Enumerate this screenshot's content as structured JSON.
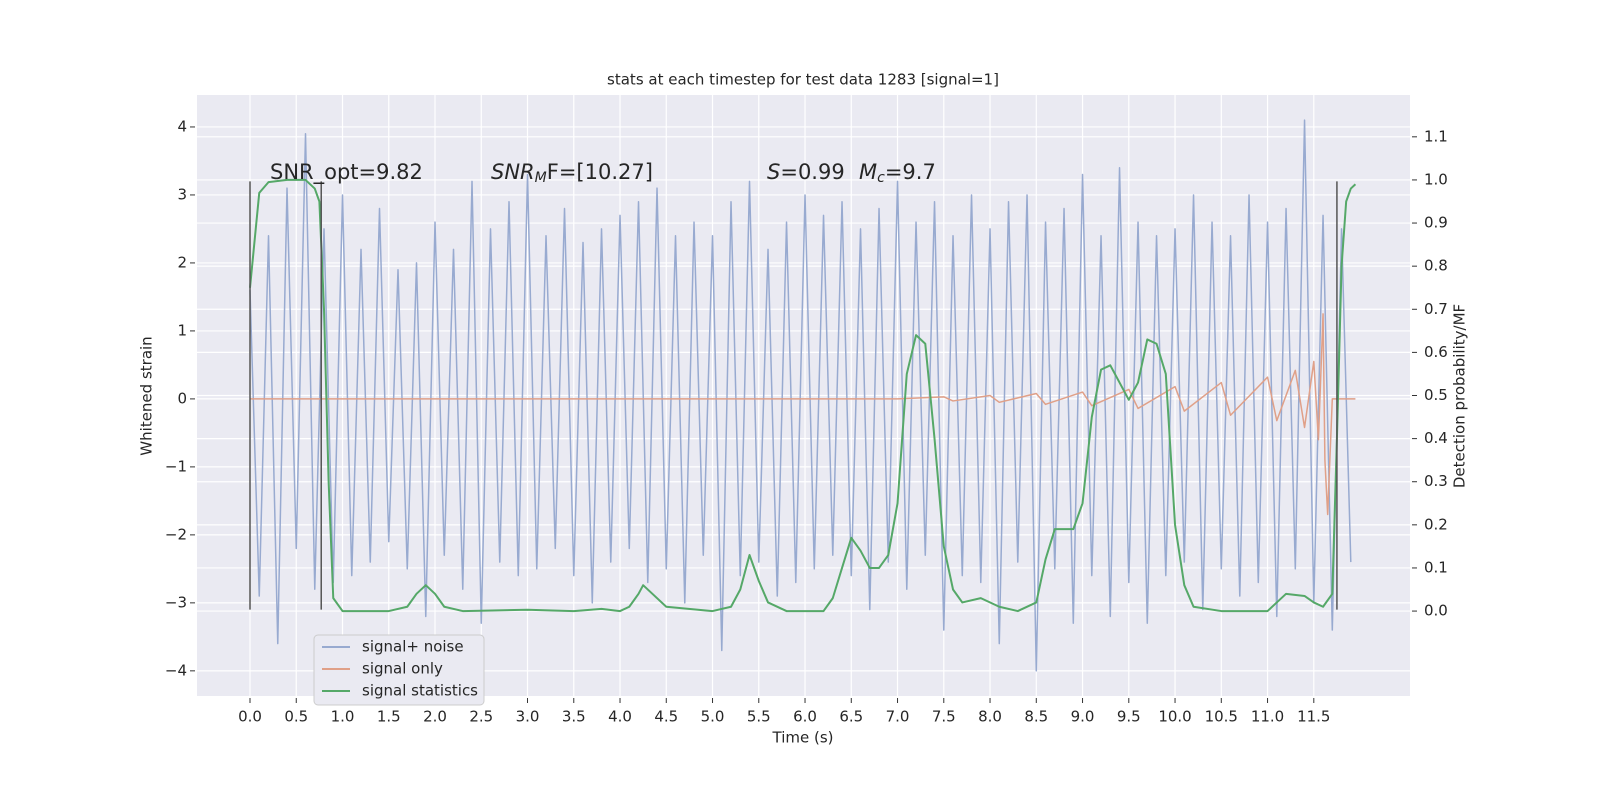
{
  "chart_data": {
    "type": "line",
    "title": "stats at each timestep for test data 1283 [signal=1]",
    "xlabel": "Time (s)",
    "ylabel": "Whitened strain",
    "y2label": "Detection probability/MF",
    "xlim": [
      -0.573,
      12.54
    ],
    "ylim": [
      -4.37,
      4.47
    ],
    "y2lim": [
      -0.197,
      1.197
    ],
    "xticks": [
      {
        "value": 0,
        "label": "0.0"
      },
      0.5,
      {
        "value": 1,
        "label": "1.0"
      },
      1.5,
      {
        "value": 2,
        "label": "2.0"
      },
      2.5,
      {
        "value": 3,
        "label": "3.0"
      },
      3.5,
      {
        "value": 4,
        "label": "4.0"
      },
      4.5,
      {
        "value": 5,
        "label": "5.0"
      },
      5.5,
      {
        "value": 6,
        "label": "6.0"
      },
      6.5,
      {
        "value": 7,
        "label": "7.0"
      },
      7.5,
      {
        "value": 8,
        "label": "8.0"
      },
      8.5,
      {
        "value": 9,
        "label": "9.0"
      },
      9.5,
      {
        "value": 10,
        "label": "10.0"
      },
      10.5,
      {
        "value": 11,
        "label": "11.0"
      },
      11.5
    ],
    "yticks": [
      {
        "value": -4,
        "label": "−4"
      },
      {
        "value": -3,
        "label": "−3"
      },
      {
        "value": -2,
        "label": "−2"
      },
      {
        "value": -1,
        "label": "−1"
      },
      0,
      1,
      2,
      3,
      4
    ],
    "y2ticks": [
      {
        "value": 0,
        "label": "0.0"
      },
      0.1,
      0.2,
      0.3,
      0.4,
      0.5,
      0.6,
      0.7,
      0.8,
      0.9,
      {
        "value": 1,
        "label": "1.0"
      },
      1.1
    ],
    "grid": true,
    "legend": "lower left",
    "annotations": [
      [
        "SNR_opt=9.82"
      ],
      [
        "SNR",
        "M",
        "F=[10.27]"
      ],
      [
        "S",
        "=0.99"
      ],
      [
        "M",
        "c",
        "=9.7"
      ]
    ],
    "vlines": {
      "x": [
        0,
        0.77,
        11.75
      ],
      "ymin": -3.1,
      "ymax": 3.2,
      "color": "#555555"
    },
    "series": [
      {
        "name": "signal+ noise",
        "color": "#98aad0",
        "x": [
          0,
          0.1,
          0.2,
          0.3,
          0.4,
          0.5,
          0.6,
          0.7,
          0.8,
          0.9,
          1,
          1.1,
          1.2,
          1.3,
          1.4,
          1.5,
          1.6,
          1.7,
          1.8,
          1.9,
          2,
          2.1,
          2.2,
          2.3,
          2.4,
          2.5,
          2.6,
          2.7,
          2.8,
          2.9,
          3,
          3.1,
          3.2,
          3.3,
          3.4,
          3.5,
          3.6,
          3.7,
          3.8,
          3.9,
          4,
          4.1,
          4.2,
          4.3,
          4.4,
          4.5,
          4.6,
          4.7,
          4.8,
          4.9,
          5,
          5.1,
          5.2,
          5.3,
          5.4,
          5.5,
          5.6,
          5.7,
          5.8,
          5.9,
          6,
          6.1,
          6.2,
          6.3,
          6.4,
          6.5,
          6.6,
          6.7,
          6.8,
          6.9,
          7,
          7.1,
          7.2,
          7.3,
          7.4,
          7.5,
          7.6,
          7.7,
          7.8,
          7.9,
          8,
          8.1,
          8.2,
          8.3,
          8.4,
          8.5,
          8.6,
          8.7,
          8.8,
          8.9,
          9,
          9.1,
          9.2,
          9.3,
          9.4,
          9.5,
          9.6,
          9.7,
          9.8,
          9.9,
          10,
          10.1,
          10.2,
          10.3,
          10.4,
          10.5,
          10.6,
          10.7,
          10.8,
          10.9,
          11,
          11.1,
          11.2,
          11.3,
          11.4,
          11.5,
          11.6,
          11.7,
          11.8,
          11.9
        ],
        "values": [
          1.6,
          -2.9,
          2.4,
          -3.6,
          3.1,
          -2.2,
          3.9,
          -2.8,
          2.5,
          -2.7,
          3.0,
          -2.6,
          2.2,
          -2.4,
          2.8,
          -2.1,
          1.9,
          -2.5,
          2.0,
          -3.2,
          2.6,
          -2.3,
          2.2,
          -2.8,
          3.2,
          -3.3,
          2.5,
          -2.4,
          2.9,
          -2.6,
          3.3,
          -2.5,
          2.4,
          -2.2,
          2.8,
          -2.6,
          2.3,
          -3.0,
          2.5,
          -2.4,
          2.7,
          -2.2,
          2.9,
          -2.7,
          3.1,
          -2.5,
          2.4,
          -3.0,
          2.6,
          -2.3,
          2.4,
          -3.7,
          2.9,
          -2.6,
          3.2,
          -2.4,
          2.2,
          -2.9,
          2.6,
          -2.7,
          3.0,
          -2.5,
          2.7,
          -2.3,
          2.9,
          -2.6,
          2.5,
          -3.1,
          2.8,
          -2.4,
          3.2,
          -2.8,
          2.6,
          -2.3,
          2.9,
          -3.4,
          2.4,
          -2.6,
          3.0,
          -2.7,
          2.5,
          -3.6,
          2.9,
          -2.4,
          3.0,
          -4.0,
          2.6,
          -2.5,
          2.8,
          -3.3,
          3.3,
          -2.6,
          2.4,
          -3.2,
          3.4,
          -2.7,
          2.6,
          -3.3,
          2.4,
          -2.6,
          2.5,
          -2.4,
          3.0,
          -3.1,
          2.6,
          -2.5,
          2.4,
          -2.9,
          3.0,
          -2.7,
          2.6,
          -3.2,
          2.8,
          -2.5,
          4.1,
          -3.0,
          2.7,
          -3.4,
          2.5,
          -2.4
        ]
      },
      {
        "name": "signal only",
        "color": "#e0a088",
        "x": [
          0,
          7,
          7.5,
          7.6,
          8,
          8.1,
          8.5,
          8.6,
          9,
          9.1,
          9.5,
          9.6,
          10,
          10.1,
          10.5,
          10.6,
          11,
          11.1,
          11.3,
          11.4,
          11.5,
          11.55,
          11.6,
          11.62,
          11.65,
          11.7,
          11.95
        ],
        "values": [
          0,
          0,
          0.03,
          -0.03,
          0.05,
          -0.05,
          0.08,
          -0.08,
          0.1,
          -0.1,
          0.14,
          -0.14,
          0.18,
          -0.18,
          0.24,
          -0.24,
          0.32,
          -0.32,
          0.42,
          -0.42,
          0.55,
          -0.6,
          1.25,
          -0.9,
          -1.7,
          0,
          0
        ]
      },
      {
        "name": "signal statistics",
        "color": "#55a868",
        "axis": "y2",
        "x": [
          0,
          0.1,
          0.2,
          0.4,
          0.6,
          0.7,
          0.75,
          0.8,
          0.85,
          0.9,
          1,
          1.5,
          1.7,
          1.8,
          1.9,
          2,
          2.1,
          2.3,
          3,
          3.5,
          3.8,
          4,
          4.1,
          4.2,
          4.25,
          4.35,
          4.5,
          5,
          5.2,
          5.3,
          5.4,
          5.5,
          5.6,
          5.8,
          6.2,
          6.3,
          6.4,
          6.5,
          6.6,
          6.7,
          6.8,
          6.9,
          7,
          7.1,
          7.2,
          7.3,
          7.4,
          7.5,
          7.6,
          7.7,
          7.9,
          8.1,
          8.3,
          8.5,
          8.6,
          8.7,
          8.9,
          9,
          9.1,
          9.2,
          9.3,
          9.4,
          9.5,
          9.6,
          9.7,
          9.8,
          9.9,
          10,
          10.1,
          10.2,
          10.5,
          11,
          11.1,
          11.2,
          11.4,
          11.5,
          11.6,
          11.7,
          11.75,
          11.8,
          11.85,
          11.9,
          11.95
        ],
        "values": [
          0.75,
          0.97,
          0.995,
          1.0,
          1.0,
          0.98,
          0.95,
          0.7,
          0.3,
          0.03,
          0.0,
          0.0,
          0.01,
          0.04,
          0.06,
          0.04,
          0.01,
          0.0,
          0.003,
          0.0,
          0.005,
          0.0,
          0.01,
          0.04,
          0.06,
          0.04,
          0.01,
          0.0,
          0.01,
          0.05,
          0.13,
          0.07,
          0.02,
          0.0,
          0.0,
          0.03,
          0.1,
          0.17,
          0.14,
          0.1,
          0.1,
          0.13,
          0.25,
          0.55,
          0.64,
          0.62,
          0.4,
          0.15,
          0.05,
          0.02,
          0.03,
          0.01,
          0.0,
          0.02,
          0.12,
          0.19,
          0.19,
          0.25,
          0.45,
          0.56,
          0.57,
          0.53,
          0.49,
          0.53,
          0.63,
          0.62,
          0.55,
          0.2,
          0.06,
          0.01,
          0.0,
          0.0,
          0.02,
          0.04,
          0.035,
          0.02,
          0.01,
          0.04,
          0.4,
          0.8,
          0.95,
          0.98,
          0.99
        ]
      }
    ]
  }
}
